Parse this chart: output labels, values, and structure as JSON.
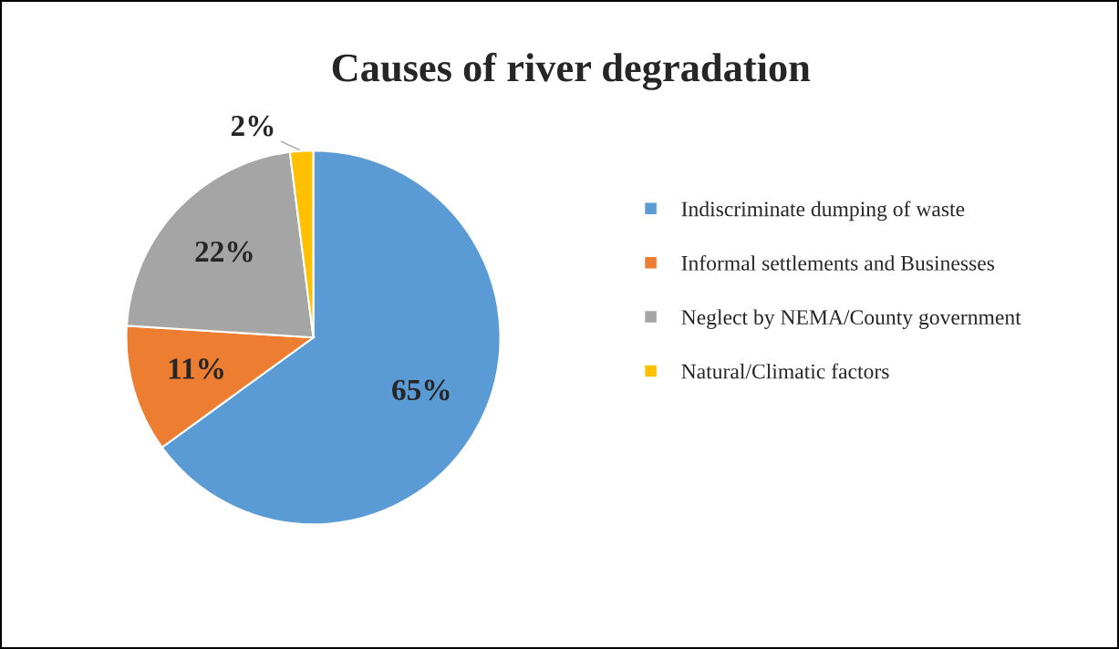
{
  "chart_data": {
    "type": "pie",
    "title": "Causes of river degradation",
    "categories": [
      "Indiscriminate dumping of waste",
      "Informal settlements and Businesses",
      "Neglect by NEMA/County government",
      "Natural/Climatic factors"
    ],
    "values": [
      65,
      11,
      22,
      2
    ],
    "colors": [
      "#5b9bd5",
      "#ed7d31",
      "#a5a5a5",
      "#ffc000"
    ],
    "value_labels": [
      "65%",
      "11%",
      "22%",
      "2%"
    ],
    "legend": "right"
  }
}
